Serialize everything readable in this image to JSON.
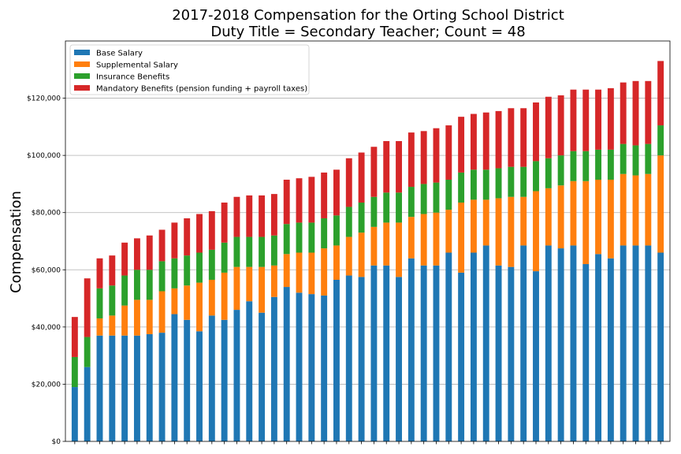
{
  "chart_data": {
    "type": "bar",
    "stacked": true,
    "title": "2017-2018 Compensation for the Orting School District",
    "subtitle": "Duty Title = Secondary Teacher; Count = 48",
    "xlabel": "",
    "ylabel": "Compensation",
    "ylim": [
      0,
      140000
    ],
    "yticks": [
      0,
      20000,
      40000,
      60000,
      80000,
      100000,
      120000
    ],
    "ytick_labels": [
      "$0",
      "$20,000",
      "$40,000",
      "$60,000",
      "$80,000",
      "$100,000",
      "$120,000"
    ],
    "grid": "horizontal",
    "legend_position": "top-left",
    "series": [
      {
        "name": "Base Salary",
        "color": "#1f77b4",
        "values": [
          19000,
          26000,
          37000,
          37000,
          37000,
          37000,
          37500,
          38000,
          44500,
          42500,
          38500,
          44000,
          42500,
          46000,
          49000,
          45000,
          50500,
          54000,
          52000,
          51500,
          51000,
          56500,
          58000,
          57500,
          61500,
          61500,
          57500,
          64000,
          61500,
          61500,
          66000,
          59000,
          66000,
          68500,
          61500,
          61000,
          68500,
          59500,
          68500,
          67500,
          68500,
          62000,
          65500,
          64000,
          68500,
          68500,
          68500,
          66000
        ]
      },
      {
        "name": "Supplemental Salary",
        "color": "#ff7f0e",
        "values": [
          0,
          0,
          6000,
          7000,
          10500,
          12500,
          12000,
          14500,
          9000,
          12000,
          17000,
          12500,
          16500,
          15000,
          12000,
          16000,
          11000,
          11500,
          14000,
          14500,
          16500,
          12000,
          13500,
          15500,
          13500,
          15000,
          19000,
          14500,
          18000,
          18500,
          15000,
          24500,
          18500,
          16000,
          23500,
          24500,
          17000,
          28000,
          20000,
          22000,
          22500,
          29000,
          26000,
          27500,
          25000,
          24500,
          25000,
          34000
        ]
      },
      {
        "name": "Insurance Benefits",
        "color": "#2ca02c",
        "values": [
          10500,
          10500,
          10500,
          10500,
          10500,
          10500,
          10500,
          10500,
          10500,
          10500,
          10500,
          10500,
          10500,
          10500,
          10500,
          10500,
          10500,
          10500,
          10500,
          10500,
          10500,
          10500,
          10500,
          10500,
          10500,
          10500,
          10500,
          10500,
          10500,
          10500,
          10500,
          10500,
          10500,
          10500,
          10500,
          10500,
          10500,
          10500,
          10500,
          10500,
          10500,
          10500,
          10500,
          10500,
          10500,
          10500,
          10500,
          10500
        ]
      },
      {
        "name": "Mandatory Benefits (pension funding + payroll taxes)",
        "color": "#d62728",
        "values": [
          14000,
          20500,
          10500,
          10500,
          11500,
          11000,
          12000,
          11000,
          12500,
          13000,
          13500,
          13500,
          14000,
          14000,
          14500,
          14500,
          14500,
          15500,
          15500,
          16000,
          16000,
          16000,
          17000,
          17500,
          17500,
          18000,
          18000,
          19000,
          18500,
          19000,
          19000,
          19500,
          19500,
          20000,
          20000,
          20500,
          20500,
          20500,
          21500,
          21000,
          21500,
          21500,
          21000,
          21500,
          21500,
          22500,
          22000,
          22500
        ]
      }
    ]
  }
}
